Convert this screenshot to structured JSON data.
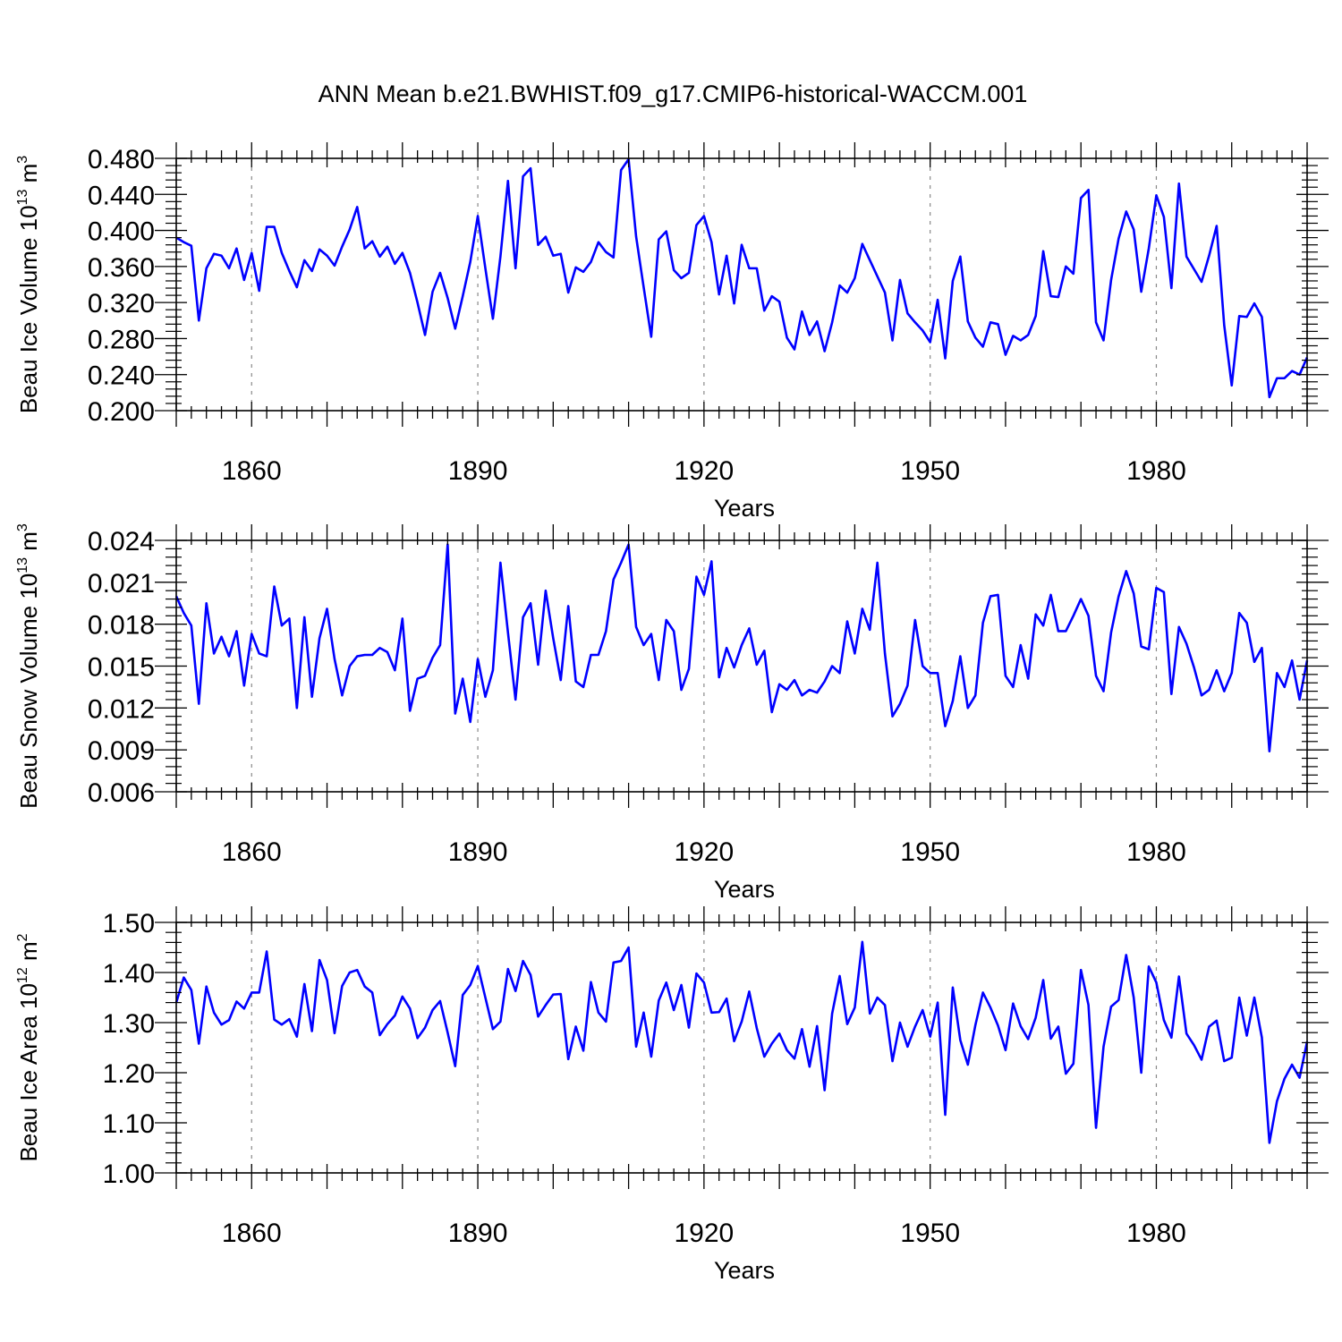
{
  "figure": {
    "title": "ANN Mean b.e21.BWHIST.f09_g17.CMIP6-historical-WACCM.001",
    "line_color": "#0000ff",
    "grid_color": "#888888"
  },
  "chart_data": [
    {
      "type": "line",
      "id": "ice_volume",
      "ylabel_main": "Beau Ice Volume 10",
      "ylabel_exp": "13",
      "ylabel_unit": " m",
      "ylabel_unit_exp": "3",
      "xlabel": "Years",
      "xlim": [
        1850,
        2000
      ],
      "ylim": [
        0.2,
        0.48
      ],
      "yticks": [
        0.2,
        0.24,
        0.28,
        0.32,
        0.36,
        0.4,
        0.44,
        0.48
      ],
      "ytick_labels": [
        "0.200",
        "0.240",
        "0.280",
        "0.320",
        "0.360",
        "0.400",
        "0.440",
        "0.480"
      ],
      "xticks": [
        1860,
        1890,
        1920,
        1950,
        1980
      ],
      "xtick_labels": [
        "1860",
        "1890",
        "1920",
        "1950",
        "1980"
      ],
      "x_start": 1850,
      "values": [
        0.392,
        0.387,
        0.383,
        0.3,
        0.358,
        0.374,
        0.372,
        0.358,
        0.38,
        0.345,
        0.375,
        0.333,
        0.404,
        0.404,
        0.375,
        0.355,
        0.337,
        0.367,
        0.355,
        0.379,
        0.372,
        0.361,
        0.382,
        0.401,
        0.426,
        0.38,
        0.388,
        0.371,
        0.382,
        0.363,
        0.375,
        0.353,
        0.32,
        0.284,
        0.332,
        0.353,
        0.325,
        0.291,
        0.327,
        0.365,
        0.416,
        0.358,
        0.302,
        0.371,
        0.455,
        0.358,
        0.46,
        0.469,
        0.384,
        0.393,
        0.372,
        0.374,
        0.331,
        0.359,
        0.354,
        0.365,
        0.387,
        0.376,
        0.37,
        0.467,
        0.479,
        0.393,
        0.337,
        0.282,
        0.39,
        0.399,
        0.356,
        0.347,
        0.353,
        0.406,
        0.416,
        0.387,
        0.329,
        0.372,
        0.319,
        0.384,
        0.358,
        0.358,
        0.311,
        0.327,
        0.321,
        0.281,
        0.268,
        0.31,
        0.284,
        0.299,
        0.266,
        0.298,
        0.339,
        0.331,
        0.347,
        0.385,
        0.367,
        0.349,
        0.331,
        0.278,
        0.345,
        0.308,
        0.298,
        0.289,
        0.276,
        0.323,
        0.258,
        0.344,
        0.371,
        0.299,
        0.281,
        0.271,
        0.298,
        0.296,
        0.262,
        0.283,
        0.278,
        0.284,
        0.305,
        0.377,
        0.327,
        0.326,
        0.36,
        0.352,
        0.436,
        0.445,
        0.298,
        0.278,
        0.345,
        0.391,
        0.421,
        0.401,
        0.332,
        0.38,
        0.439,
        0.415,
        0.336,
        0.452,
        0.371,
        0.357,
        0.343,
        0.372,
        0.405,
        0.295,
        0.228,
        0.305,
        0.304,
        0.319,
        0.304,
        0.215,
        0.236,
        0.236,
        0.244,
        0.24,
        0.259
      ]
    },
    {
      "type": "line",
      "id": "snow_volume",
      "ylabel_main": "Beau Snow Volume 10",
      "ylabel_exp": "13",
      "ylabel_unit": " m",
      "ylabel_unit_exp": "3",
      "xlabel": "Years",
      "xlim": [
        1850,
        2000
      ],
      "ylim": [
        0.006,
        0.024
      ],
      "yticks": [
        0.006,
        0.009,
        0.012,
        0.015,
        0.018,
        0.021,
        0.024
      ],
      "ytick_labels": [
        "0.006",
        "0.009",
        "0.012",
        "0.015",
        "0.018",
        "0.021",
        "0.024"
      ],
      "xticks": [
        1860,
        1890,
        1920,
        1950,
        1980
      ],
      "xtick_labels": [
        "1860",
        "1890",
        "1920",
        "1950",
        "1980"
      ],
      "x_start": 1850,
      "values": [
        0.02,
        0.0188,
        0.0179,
        0.0123,
        0.0195,
        0.0159,
        0.0171,
        0.0157,
        0.0175,
        0.0136,
        0.0173,
        0.0159,
        0.0157,
        0.0207,
        0.0179,
        0.0184,
        0.012,
        0.0185,
        0.0128,
        0.017,
        0.0191,
        0.0155,
        0.0129,
        0.015,
        0.0157,
        0.0158,
        0.0158,
        0.0163,
        0.016,
        0.0147,
        0.0184,
        0.0118,
        0.0141,
        0.0143,
        0.0156,
        0.0165,
        0.0237,
        0.0116,
        0.0141,
        0.011,
        0.0155,
        0.0128,
        0.0147,
        0.0224,
        0.0174,
        0.0126,
        0.0185,
        0.0195,
        0.0151,
        0.0204,
        0.017,
        0.014,
        0.0193,
        0.0139,
        0.0135,
        0.0158,
        0.0158,
        0.0175,
        0.0212,
        0.0224,
        0.0237,
        0.0178,
        0.0165,
        0.0173,
        0.014,
        0.0183,
        0.0175,
        0.0133,
        0.0148,
        0.0214,
        0.0201,
        0.0225,
        0.0142,
        0.0163,
        0.0149,
        0.0165,
        0.0177,
        0.0151,
        0.0161,
        0.0117,
        0.0137,
        0.0133,
        0.014,
        0.0129,
        0.0133,
        0.0131,
        0.0139,
        0.015,
        0.0145,
        0.0182,
        0.0159,
        0.0191,
        0.0176,
        0.0224,
        0.0159,
        0.0114,
        0.0123,
        0.0136,
        0.0183,
        0.015,
        0.0145,
        0.0145,
        0.0107,
        0.0125,
        0.0157,
        0.012,
        0.0129,
        0.0181,
        0.02,
        0.0201,
        0.0143,
        0.0135,
        0.0165,
        0.0141,
        0.0187,
        0.0179,
        0.0201,
        0.0175,
        0.0175,
        0.0186,
        0.0198,
        0.0186,
        0.0143,
        0.0132,
        0.0174,
        0.02,
        0.0218,
        0.0202,
        0.0164,
        0.0162,
        0.0206,
        0.0203,
        0.013,
        0.0178,
        0.0166,
        0.0149,
        0.0129,
        0.0133,
        0.0147,
        0.0132,
        0.0145,
        0.0188,
        0.0181,
        0.0153,
        0.0163,
        0.0089,
        0.0145,
        0.0135,
        0.0154,
        0.0126,
        0.0154
      ]
    },
    {
      "type": "line",
      "id": "ice_area",
      "ylabel_main": "Beau Ice Area 10",
      "ylabel_exp": "12",
      "ylabel_unit": " m",
      "ylabel_unit_exp": "2",
      "xlabel": "Years",
      "xlim": [
        1850,
        2000
      ],
      "ylim": [
        1.0,
        1.5
      ],
      "yticks": [
        1.0,
        1.1,
        1.2,
        1.3,
        1.4,
        1.5
      ],
      "ytick_labels": [
        "1.00",
        "1.10",
        "1.20",
        "1.30",
        "1.40",
        "1.50"
      ],
      "xticks": [
        1860,
        1890,
        1920,
        1950,
        1980
      ],
      "xtick_labels": [
        "1860",
        "1890",
        "1920",
        "1950",
        "1980"
      ],
      "x_start": 1850,
      "values": [
        1.34,
        1.39,
        1.365,
        1.258,
        1.372,
        1.32,
        1.296,
        1.305,
        1.342,
        1.328,
        1.36,
        1.36,
        1.442,
        1.306,
        1.296,
        1.307,
        1.272,
        1.377,
        1.283,
        1.425,
        1.385,
        1.279,
        1.373,
        1.4,
        1.405,
        1.372,
        1.36,
        1.275,
        1.297,
        1.314,
        1.352,
        1.328,
        1.269,
        1.29,
        1.325,
        1.343,
        1.28,
        1.213,
        1.355,
        1.375,
        1.413,
        1.35,
        1.287,
        1.302,
        1.407,
        1.363,
        1.423,
        1.395,
        1.312,
        1.335,
        1.356,
        1.357,
        1.227,
        1.292,
        1.244,
        1.381,
        1.32,
        1.302,
        1.42,
        1.423,
        1.45,
        1.252,
        1.32,
        1.232,
        1.344,
        1.38,
        1.325,
        1.375,
        1.29,
        1.398,
        1.38,
        1.32,
        1.321,
        1.348,
        1.263,
        1.302,
        1.362,
        1.289,
        1.232,
        1.258,
        1.278,
        1.245,
        1.228,
        1.287,
        1.212,
        1.293,
        1.165,
        1.318,
        1.393,
        1.297,
        1.33,
        1.461,
        1.318,
        1.35,
        1.335,
        1.223,
        1.3,
        1.252,
        1.292,
        1.325,
        1.272,
        1.34,
        1.116,
        1.37,
        1.265,
        1.216,
        1.295,
        1.36,
        1.33,
        1.294,
        1.245,
        1.338,
        1.293,
        1.267,
        1.31,
        1.385,
        1.268,
        1.292,
        1.198,
        1.218,
        1.405,
        1.335,
        1.09,
        1.252,
        1.332,
        1.345,
        1.435,
        1.35,
        1.2,
        1.412,
        1.38,
        1.305,
        1.27,
        1.392,
        1.278,
        1.255,
        1.226,
        1.292,
        1.304,
        1.223,
        1.23,
        1.35,
        1.274,
        1.35,
        1.27,
        1.06,
        1.143,
        1.188,
        1.216,
        1.19,
        1.262
      ]
    }
  ]
}
